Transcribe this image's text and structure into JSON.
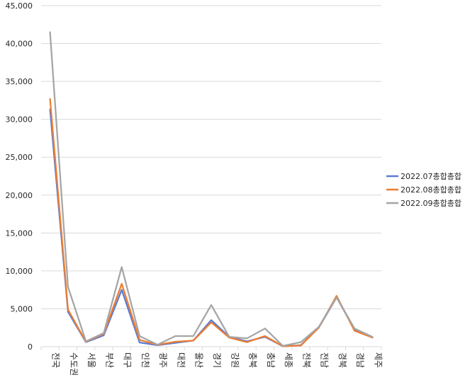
{
  "chart_data": {
    "type": "line",
    "title": "",
    "xlabel": "",
    "ylabel": "",
    "ylim": [
      0,
      45000
    ],
    "yticks": [
      0,
      5000,
      10000,
      15000,
      20000,
      25000,
      30000,
      35000,
      40000,
      45000
    ],
    "ytick_labels": [
      "0",
      "5,000",
      "10,000",
      "15,000",
      "20,000",
      "25,000",
      "30,000",
      "35,000",
      "40,000",
      "45,000"
    ],
    "grid": "horizontal",
    "legend_position": "right",
    "categories": [
      "전국",
      "수도권",
      "서울",
      "부산",
      "대구",
      "인천",
      "광주",
      "대전",
      "울산",
      "경기",
      "강원",
      "충북",
      "충남",
      "세종",
      "전북",
      "전남",
      "경북",
      "경남",
      "제주"
    ],
    "series": [
      {
        "name": "2022.07총합총합",
        "color": "#5b7bd5",
        "values": [
          31300,
          4600,
          600,
          1500,
          7500,
          550,
          200,
          500,
          800,
          3500,
          1300,
          700,
          1300,
          50,
          200,
          2500,
          6500,
          2300,
          1200
        ]
      },
      {
        "name": "2022.08총합총합",
        "color": "#ed7d31",
        "values": [
          32700,
          4900,
          650,
          1700,
          8300,
          900,
          250,
          650,
          800,
          3200,
          1200,
          600,
          1400,
          60,
          150,
          2500,
          6700,
          2100,
          1200
        ]
      },
      {
        "name": "2022.09총합총합",
        "color": "#a5a5a5",
        "values": [
          41500,
          7900,
          700,
          1800,
          10500,
          1400,
          250,
          1400,
          1400,
          5500,
          1300,
          1100,
          2400,
          100,
          600,
          2600,
          6500,
          2400,
          1300
        ]
      }
    ]
  }
}
